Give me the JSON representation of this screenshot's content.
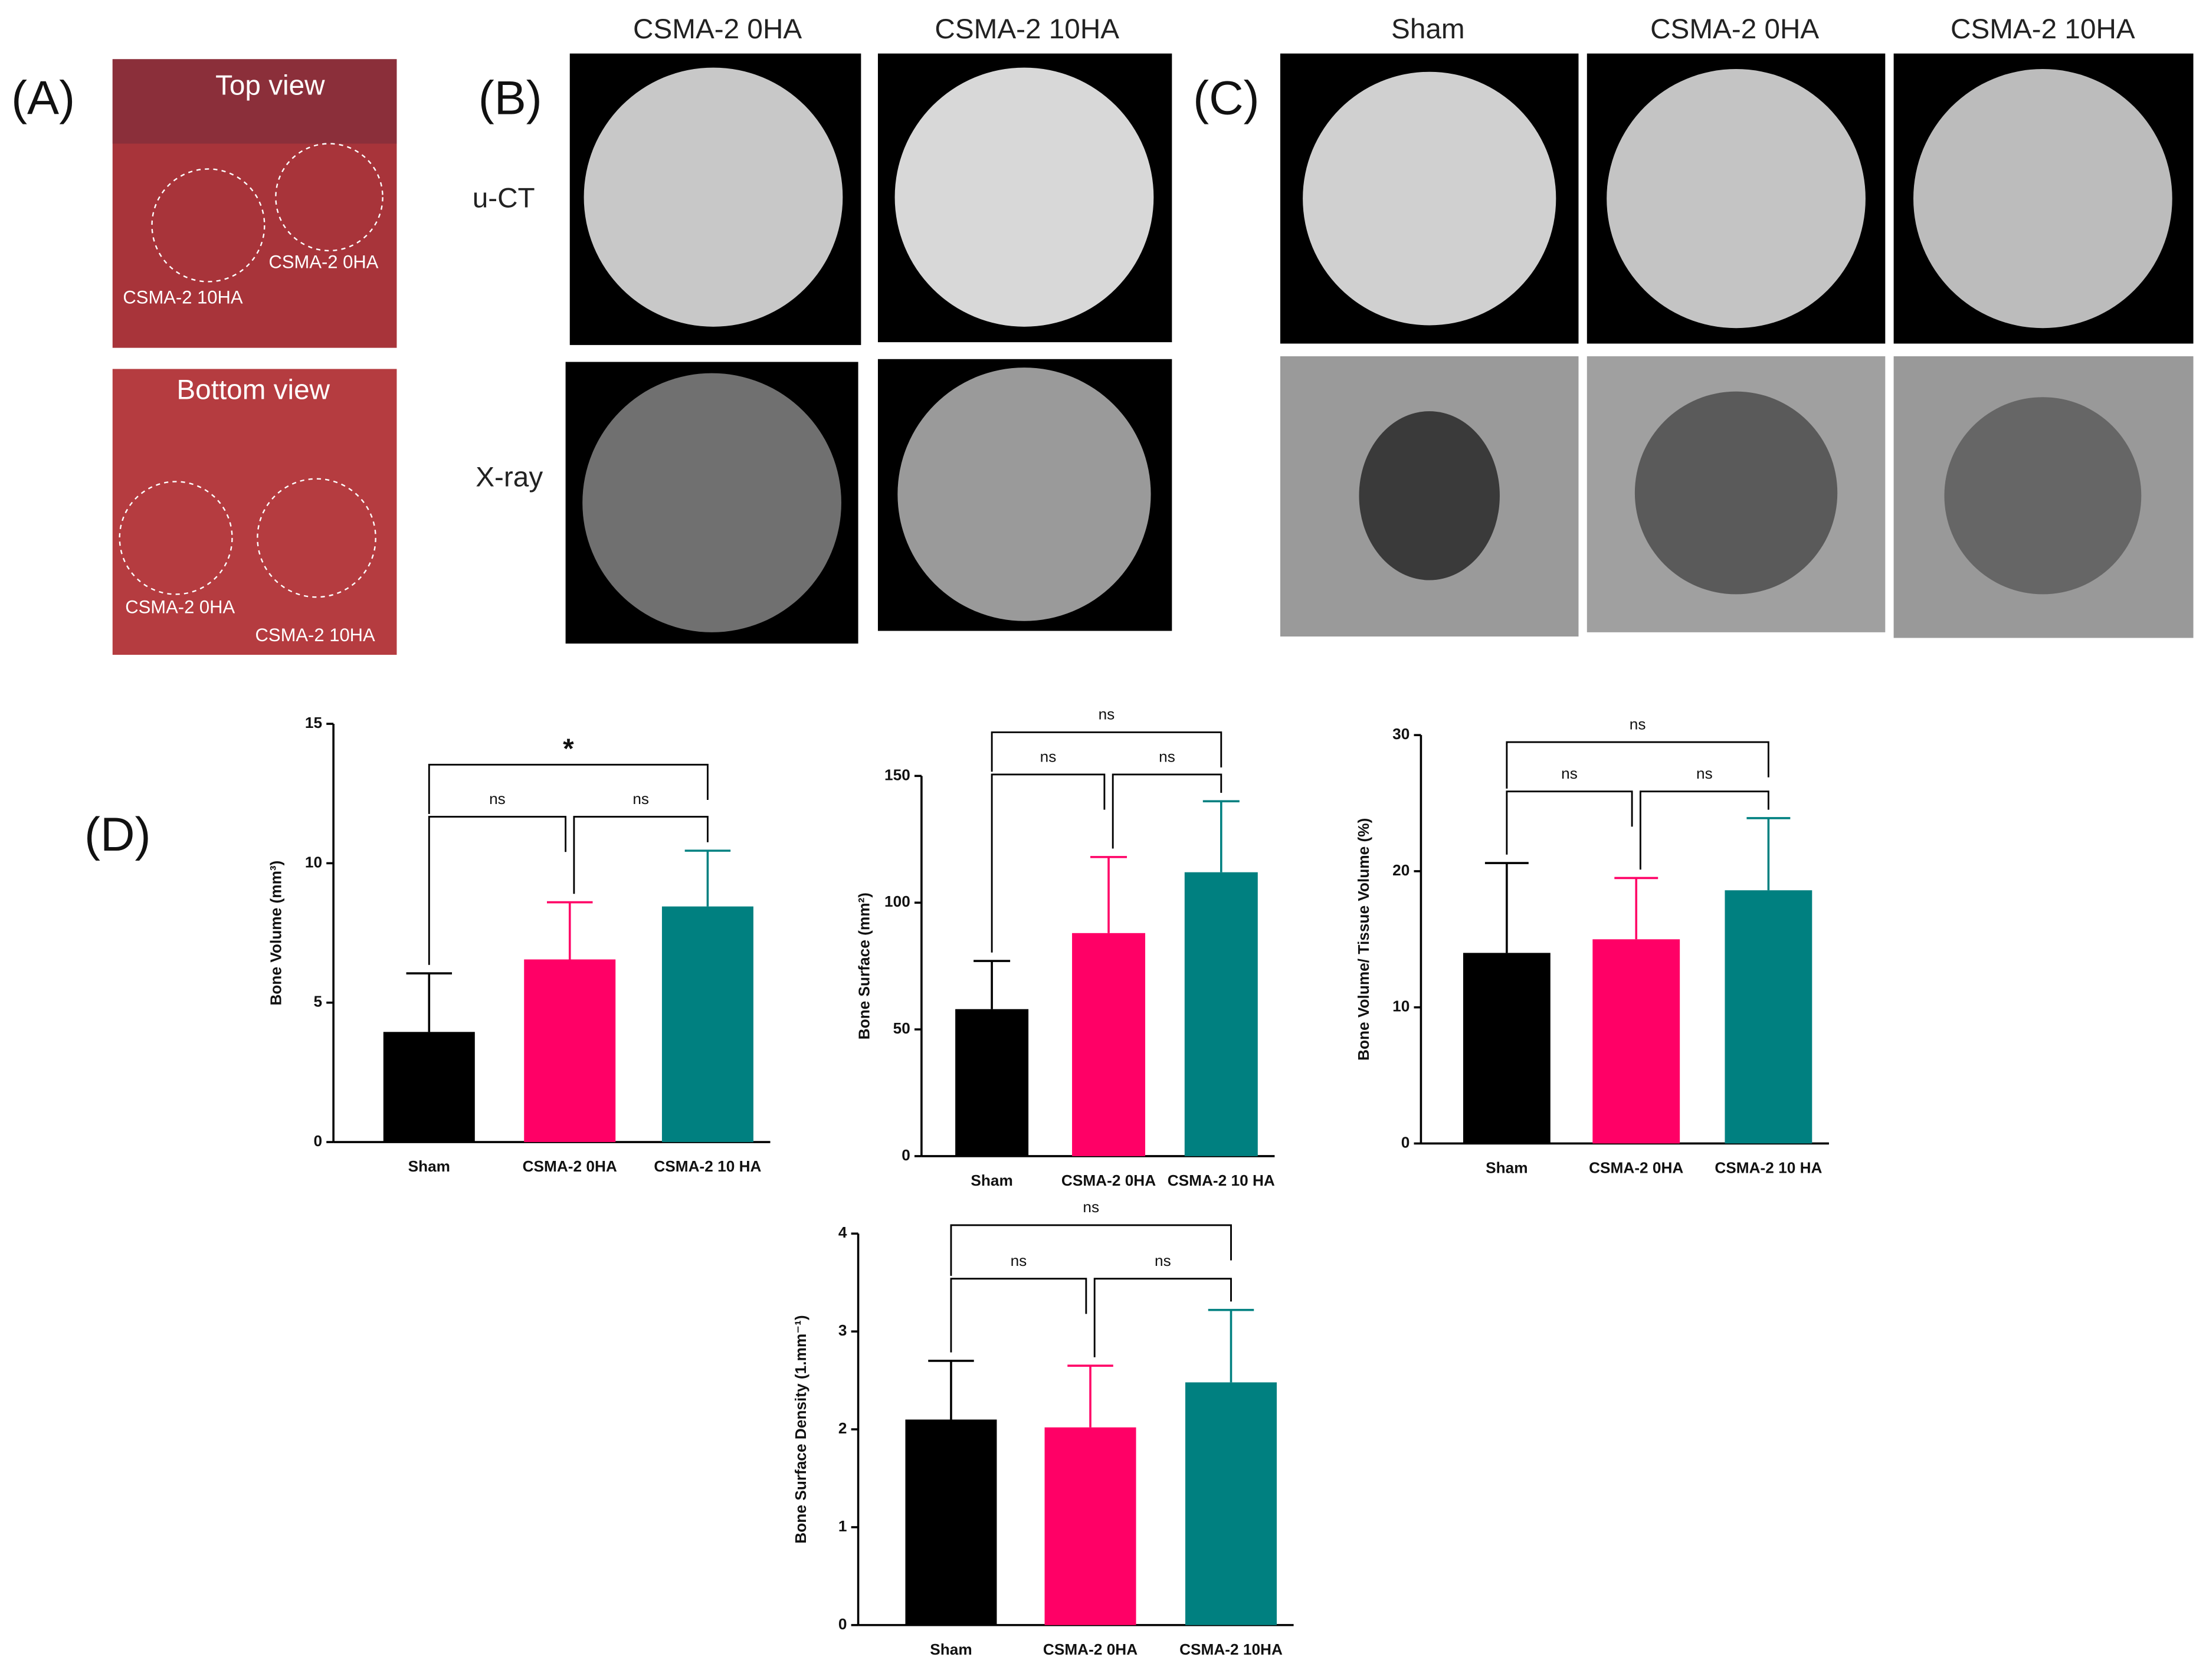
{
  "panels": {
    "a": {
      "label": "(A)",
      "top_view": "Top view",
      "top_labels": [
        "CSMA-2 10HA",
        "CSMA-2 0HA"
      ],
      "bottom_view": "Bottom view",
      "bottom_labels": [
        "CSMA-2 0HA",
        "CSMA-2 10HA"
      ]
    },
    "b": {
      "label": "(B)",
      "columns": [
        "CSMA-2 0HA",
        "CSMA-2 10HA"
      ],
      "rows": [
        "u-CT",
        "X-ray"
      ]
    },
    "c": {
      "label": "(C)",
      "columns": [
        "Sham",
        "CSMA-2 0HA",
        "CSMA-2 10HA"
      ]
    },
    "d": {
      "label": "(D)"
    }
  },
  "chart_data": [
    {
      "type": "bar",
      "y_label": "Bone Volume (mm³)",
      "categories": [
        "Sham",
        "CSMA-2 0HA",
        "CSMA-2 10 HA"
      ],
      "values": [
        3.95,
        6.55,
        8.45
      ],
      "errors": [
        2.1,
        2.05,
        2.0
      ],
      "colors": [
        "#000000",
        "#ff0066",
        "#008080"
      ],
      "ylim": [
        0,
        15
      ],
      "yticks": [
        0,
        5,
        10,
        15
      ],
      "annotations": [
        "*",
        "ns",
        "ns"
      ]
    },
    {
      "type": "bar",
      "y_label": "Bone Surface (mm²)",
      "categories": [
        "Sham",
        "CSMA-2 0HA",
        "CSMA-2 10 HA"
      ],
      "values": [
        58,
        88,
        112
      ],
      "errors": [
        19,
        30,
        28
      ],
      "colors": [
        "#000000",
        "#ff0066",
        "#008080"
      ],
      "ylim": [
        0,
        150
      ],
      "yticks": [
        0,
        50,
        100,
        150
      ],
      "annotations": [
        "ns",
        "ns",
        "ns"
      ]
    },
    {
      "type": "bar",
      "y_label": "Bone Volume/ Tissue Volume (%)",
      "categories": [
        "Sham",
        "CSMA-2 0HA",
        "CSMA-2 10 HA"
      ],
      "values": [
        14,
        15,
        18.6
      ],
      "errors": [
        6.6,
        4.5,
        5.3
      ],
      "colors": [
        "#000000",
        "#ff0066",
        "#008080"
      ],
      "ylim": [
        0,
        30
      ],
      "yticks": [
        0,
        10,
        20,
        30
      ],
      "annotations": [
        "ns",
        "ns",
        "ns"
      ]
    },
    {
      "type": "bar",
      "y_label": "Bone Surface Density (1.mm⁻¹)",
      "categories": [
        "Sham",
        "CSMA-2 0HA",
        "CSMA-2 10HA"
      ],
      "values": [
        2.1,
        2.02,
        2.48
      ],
      "errors": [
        0.6,
        0.63,
        0.74
      ],
      "colors": [
        "#000000",
        "#ff0066",
        "#008080"
      ],
      "ylim": [
        0,
        4
      ],
      "yticks": [
        0,
        1,
        2,
        3,
        4
      ],
      "annotations": [
        "ns",
        "ns",
        "ns"
      ]
    }
  ]
}
